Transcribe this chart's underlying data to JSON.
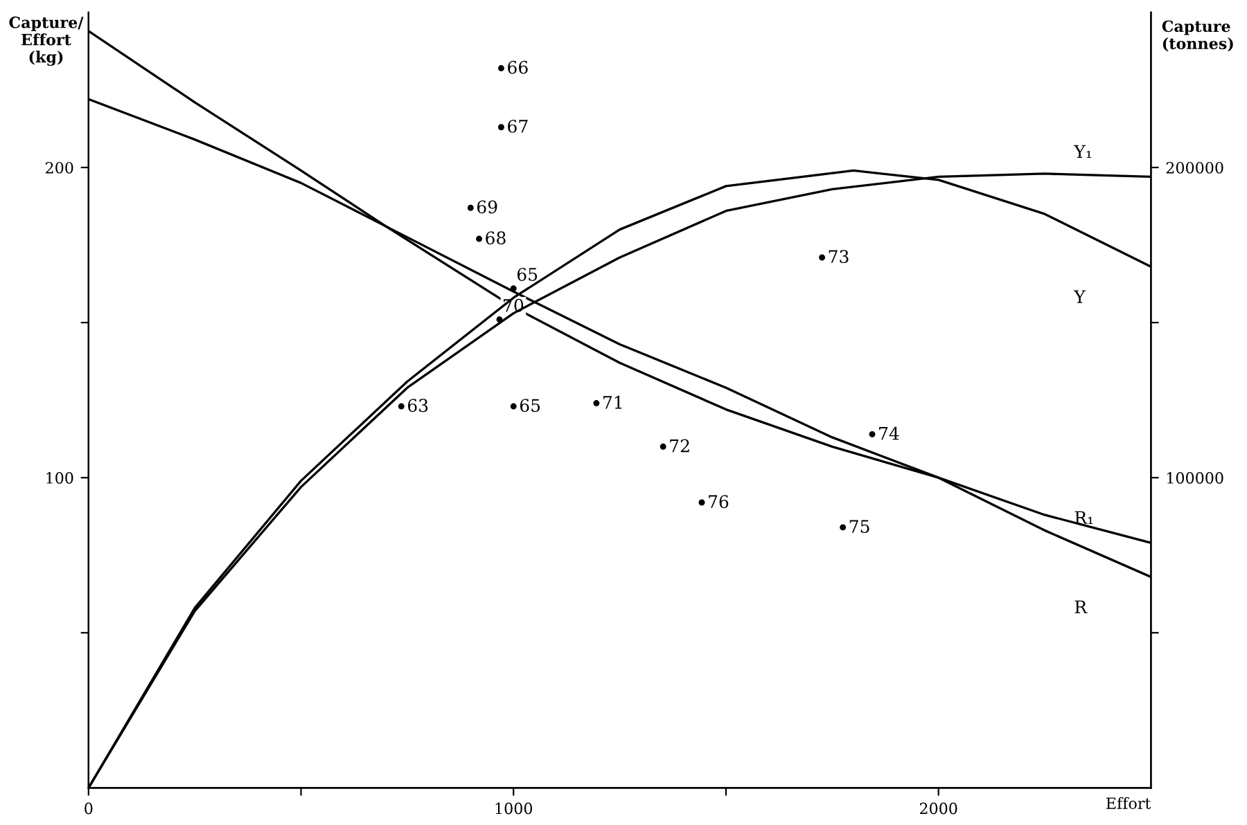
{
  "chart_data": {
    "type": "line",
    "ylabel": "Capture/\nEffort\n(kg)",
    "y2label": "Capture\n(tonnes)",
    "xlabel": "Effort",
    "xlim": [
      0,
      2500
    ],
    "xticks": [
      0,
      {
        "value": 500,
        "label": null
      },
      1000,
      {
        "value": 1500,
        "label": null
      },
      2000
    ],
    "ylim": [
      0,
      250
    ],
    "yticks": [
      {
        "value": 50,
        "label": null
      },
      100,
      {
        "value": 150,
        "label": null
      },
      200
    ],
    "y2lim": [
      0,
      250000
    ],
    "y2ticks": [
      {
        "value": 50000,
        "label": null
      },
      100000,
      {
        "value": 150000,
        "label": null
      },
      200000
    ],
    "grid": false,
    "legend": false,
    "marker": "none",
    "line_style": "solid",
    "series": [
      {
        "name": "R",
        "color": "#000000",
        "x": [
          0,
          250,
          500,
          700,
          1000,
          1250,
          1500,
          1750,
          2000,
          2250,
          2500
        ],
        "values": [
          244,
          221,
          199,
          181,
          155,
          137,
          122,
          110,
          100,
          83,
          68
        ]
      },
      {
        "name": "R₁",
        "color": "#000000",
        "x": [
          0,
          250,
          500,
          700,
          1000,
          1250,
          1500,
          1750,
          2000,
          2250,
          2500
        ],
        "values": [
          222,
          209,
          195,
          181,
          160,
          143,
          129,
          113,
          100,
          88,
          79
        ]
      },
      {
        "name": "Y",
        "color": "#000000",
        "axis": "y2",
        "x": [
          0,
          250,
          500,
          750,
          1000,
          1250,
          1500,
          1800,
          2000,
          2250,
          2500
        ],
        "values": [
          0,
          58000,
          99000,
          131000,
          158000,
          180000,
          194000,
          199000,
          196000,
          185000,
          168000
        ]
      },
      {
        "name": "Y₁",
        "color": "#000000",
        "axis": "y2",
        "x": [
          0,
          250,
          500,
          750,
          1000,
          1250,
          1500,
          1750,
          2000,
          2250,
          2500
        ],
        "values": [
          0,
          57000,
          97000,
          129000,
          153000,
          171000,
          186000,
          193000,
          197000,
          198000,
          197000
        ]
      },
      {
        "type": "scatter",
        "color": "#000000",
        "marker": "circle",
        "x": [
          971,
          971,
          899,
          919,
          1000,
          967,
          736,
          1000,
          1195,
          1352,
          1443,
          1726,
          1844,
          1775
        ],
        "values": [
          232,
          213,
          187,
          177,
          161,
          151,
          123,
          123,
          124,
          110,
          92,
          171,
          114,
          84
        ]
      }
    ],
    "annotations": [
      {
        "text": "66",
        "x": 971,
        "y": 232
      },
      {
        "text": "67",
        "x": 971,
        "y": 213
      },
      {
        "text": "69",
        "x": 899,
        "y": 187
      },
      {
        "text": "68",
        "x": 919,
        "y": 177
      },
      {
        "text": "65",
        "x": 1000,
        "y": 161
      },
      {
        "text": "70",
        "x": 967,
        "y": 151
      },
      {
        "text": "63",
        "x": 736,
        "y": 123
      },
      {
        "text": "65",
        "x": 1000,
        "y": 123
      },
      {
        "text": "71",
        "x": 1195,
        "y": 124
      },
      {
        "text": "72",
        "x": 1352,
        "y": 110
      },
      {
        "text": "76",
        "x": 1443,
        "y": 92
      },
      {
        "text": "73",
        "x": 1726,
        "y": 171
      },
      {
        "text": "74",
        "x": 1844,
        "y": 114
      },
      {
        "text": "75",
        "x": 1775,
        "y": 84
      }
    ]
  }
}
